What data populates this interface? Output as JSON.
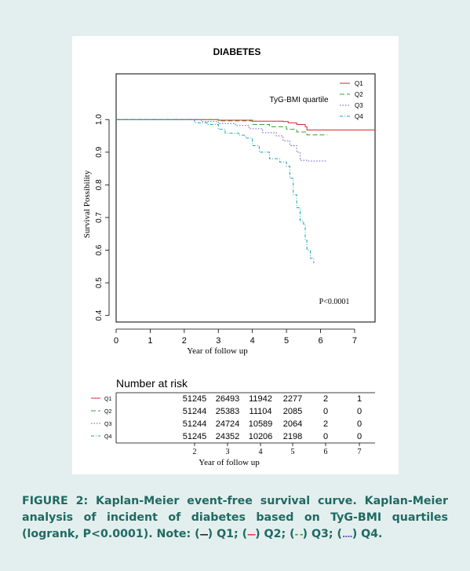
{
  "chart_data": {
    "type": "line",
    "title": "DIABETES",
    "xlabel": "Year of follow up",
    "ylabel": "Survival Possibility",
    "xlim": [
      0,
      7.6
    ],
    "ylim": [
      0.38,
      1.14
    ],
    "x_ticks": [
      "0",
      "1",
      "2",
      "3",
      "4",
      "5",
      "6",
      "7"
    ],
    "y_ticks": [
      "0.4",
      "0.5",
      "0.6",
      "0.7",
      "0.8",
      "0.9",
      "1.0"
    ],
    "legend_title": "TyG-BMI quartile",
    "legend_position": "top-right",
    "annotation": "P<0.0001",
    "series": [
      {
        "name": "Q1",
        "color": "#d9262e",
        "dash": "solid",
        "points": [
          [
            0,
            1.0
          ],
          [
            2,
            1.0
          ],
          [
            3,
            0.998
          ],
          [
            4,
            0.995
          ],
          [
            4.9,
            0.994
          ],
          [
            5.05,
            0.99
          ],
          [
            5.3,
            0.985
          ],
          [
            5.55,
            0.978
          ],
          [
            5.6,
            0.968
          ],
          [
            7.6,
            0.968
          ]
        ]
      },
      {
        "name": "Q2",
        "color": "#3b9c3b",
        "dash": "6,3",
        "points": [
          [
            0,
            1.0
          ],
          [
            2,
            1.0
          ],
          [
            3,
            0.996
          ],
          [
            4,
            0.985
          ],
          [
            4.5,
            0.978
          ],
          [
            5,
            0.97
          ],
          [
            5.3,
            0.962
          ],
          [
            5.6,
            0.953
          ],
          [
            6.2,
            0.953
          ]
        ]
      },
      {
        "name": "Q3",
        "color": "#6b56c2",
        "dash": "1.5,2",
        "points": [
          [
            0,
            1.0
          ],
          [
            2,
            1.0
          ],
          [
            2.5,
            0.994
          ],
          [
            3,
            0.988
          ],
          [
            3.5,
            0.982
          ],
          [
            3.9,
            0.972
          ],
          [
            4.3,
            0.96
          ],
          [
            4.7,
            0.95
          ],
          [
            4.9,
            0.935
          ],
          [
            5.1,
            0.92
          ],
          [
            5.3,
            0.9
          ],
          [
            5.4,
            0.875
          ],
          [
            5.6,
            0.873
          ],
          [
            6.2,
            0.873
          ]
        ]
      },
      {
        "name": "Q4",
        "color": "#1aa3b5",
        "dash": "4,2,1,2",
        "points": [
          [
            0,
            1.0
          ],
          [
            2,
            1.0
          ],
          [
            2.3,
            0.99
          ],
          [
            2.7,
            0.985
          ],
          [
            3,
            0.97
          ],
          [
            3.2,
            0.958
          ],
          [
            3.6,
            0.952
          ],
          [
            3.8,
            0.943
          ],
          [
            4,
            0.92
          ],
          [
            4.2,
            0.9
          ],
          [
            4.5,
            0.88
          ],
          [
            4.8,
            0.87
          ],
          [
            5,
            0.857
          ],
          [
            5.1,
            0.82
          ],
          [
            5.2,
            0.77
          ],
          [
            5.3,
            0.73
          ],
          [
            5.4,
            0.69
          ],
          [
            5.5,
            0.68
          ],
          [
            5.55,
            0.63
          ],
          [
            5.6,
            0.6
          ],
          [
            5.7,
            0.575
          ],
          [
            5.8,
            0.56
          ]
        ]
      }
    ],
    "risk_table": {
      "title": "Number at risk",
      "xlabel": "Year of follow up",
      "x_ticks": [
        "2",
        "3",
        "4",
        "5",
        "6",
        "7"
      ],
      "rows": [
        {
          "label": "Q1",
          "values": [
            "51245",
            "26493",
            "11942",
            "2277",
            "2",
            "1"
          ]
        },
        {
          "label": "Q2",
          "values": [
            "51244",
            "25383",
            "11104",
            "2085",
            "0",
            "0"
          ]
        },
        {
          "label": "Q3",
          "values": [
            "51244",
            "24724",
            "10589",
            "2064",
            "2",
            "0"
          ]
        },
        {
          "label": "Q4",
          "values": [
            "51245",
            "24352",
            "10206",
            "2198",
            "0",
            "0"
          ]
        }
      ]
    }
  },
  "caption": {
    "bold_label": "FIGURE 2:",
    "text_1": " Kaplan-Meier event-free survival curve. Kaplan-Meier analysis of incident of diabetes based on TyG-BMI quartiles (logrank, P<0.0001). Note: (",
    "glyph_q1": "—",
    "text_q1": ") Q1; (",
    "glyph_q2": "—",
    "text_q2": ") Q2; (",
    "glyph_q3": "- -",
    "text_q3": ") Q3; (",
    "glyph_q4": "....",
    "text_q4": ") Q4."
  }
}
